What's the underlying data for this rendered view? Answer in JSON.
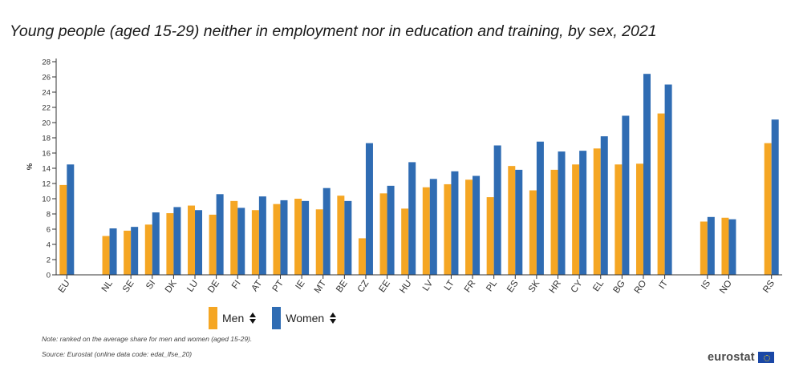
{
  "title": "Young people (aged 15-29) neither in employment nor in education and training, by sex, 2021",
  "legend": {
    "men": "Men",
    "women": "Women"
  },
  "note": "Note: ranked on the average share for men and women (aged 15-29).",
  "source": "Source: Eurostat (online data code: edat_lfse_20)",
  "logo_text": "eurostat",
  "colors": {
    "men": "#f5a623",
    "women": "#2f6cb3",
    "axis": "#333333"
  },
  "chart_data": {
    "type": "bar",
    "ylabel": "%",
    "ylim": [
      0,
      28
    ],
    "yticks": [
      0,
      2,
      4,
      6,
      8,
      10,
      12,
      14,
      16,
      18,
      20,
      22,
      24,
      26,
      28
    ],
    "grid": false,
    "legend_position": "bottom-left",
    "categories": [
      "EU",
      "",
      "NL",
      "SE",
      "SI",
      "DK",
      "LU",
      "DE",
      "FI",
      "AT",
      "PT",
      "IE",
      "MT",
      "BE",
      "CZ",
      "EE",
      "HU",
      "LV",
      "LT",
      "FR",
      "PL",
      "ES",
      "SK",
      "HR",
      "CY",
      "EL",
      "BG",
      "RO",
      "IT",
      "",
      "IS",
      "NO",
      "",
      "RS"
    ],
    "series": [
      {
        "name": "Men",
        "values": [
          11.8,
          null,
          5.1,
          5.8,
          6.6,
          8.1,
          9.1,
          7.9,
          9.7,
          8.5,
          9.3,
          10.0,
          8.6,
          10.4,
          4.8,
          10.7,
          8.7,
          11.5,
          11.9,
          12.5,
          10.2,
          14.3,
          11.1,
          13.8,
          14.5,
          16.6,
          14.5,
          14.6,
          21.2,
          null,
          7.0,
          7.5,
          null,
          17.3
        ]
      },
      {
        "name": "Women",
        "values": [
          14.5,
          null,
          6.1,
          6.3,
          8.2,
          8.9,
          8.5,
          10.6,
          8.8,
          10.3,
          9.8,
          9.7,
          11.4,
          9.7,
          17.3,
          11.7,
          14.8,
          12.6,
          13.6,
          13.0,
          17.0,
          13.8,
          17.5,
          16.2,
          16.3,
          18.2,
          20.9,
          26.4,
          25.0,
          null,
          7.6,
          7.3,
          null,
          20.4
        ]
      }
    ]
  }
}
